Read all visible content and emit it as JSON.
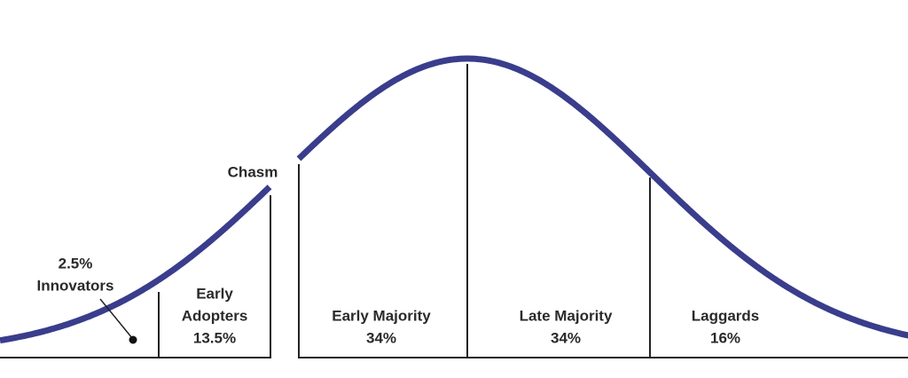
{
  "chasm_label": "Chasm",
  "segments": [
    {
      "label_lines": [
        "Innovators"
      ],
      "share": "2.5%"
    },
    {
      "label_lines": [
        "Early",
        "Adopters"
      ],
      "share": "13.5%"
    },
    {
      "label_lines": [
        "Early Majority"
      ],
      "share": "34%"
    },
    {
      "label_lines": [
        "Late Majority"
      ],
      "share": "34%"
    },
    {
      "label_lines": [
        "Laggards"
      ],
      "share": "16%"
    }
  ]
}
